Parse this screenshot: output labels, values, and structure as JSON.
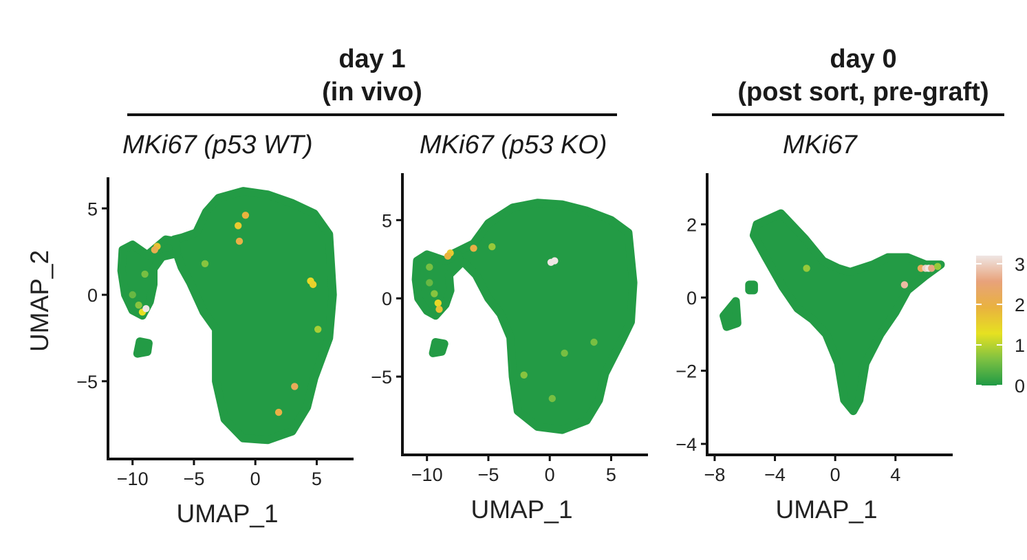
{
  "groups": {
    "day1": {
      "line1": "day 1",
      "line2": "(in vivo)"
    },
    "day0": {
      "line1": "day 0",
      "line2": "(post sort, pre-graft)"
    }
  },
  "colorbar": {
    "ticks": [
      "3",
      "2",
      "1",
      "0"
    ],
    "tick_values": [
      3,
      2,
      1,
      0
    ],
    "range": [
      0,
      3.2
    ],
    "colors": [
      "#1f9a45",
      "#7dc142",
      "#e6e121",
      "#e9b23f",
      "#e8a27a",
      "#efe6e4"
    ]
  },
  "point_color_base": "#239b45",
  "chart_data": [
    {
      "type": "scatter",
      "title": "MKi67 (p53 WT)",
      "xlabel": "UMAP_1",
      "ylabel": "UMAP_2",
      "xlim": [
        -12,
        8
      ],
      "ylim": [
        -9.5,
        6.8
      ],
      "xticks": [
        -10,
        -5,
        0,
        5
      ],
      "xtick_labels": [
        "−10",
        "−5",
        "0",
        "5"
      ],
      "yticks": [
        5,
        0,
        -5
      ],
      "ytick_labels": [
        "5",
        "0",
        "−5"
      ],
      "clusters": [
        {
          "points": [
            [
              -4.8,
              3.6
            ],
            [
              -4,
              4.8
            ],
            [
              -3,
              5.6
            ],
            [
              -1,
              6
            ],
            [
              1,
              5.8
            ],
            [
              3,
              5.3
            ],
            [
              4.8,
              4.7
            ],
            [
              6,
              3.5
            ],
            [
              6.3,
              0
            ],
            [
              6,
              -2.5
            ],
            [
              4.8,
              -4.8
            ],
            [
              4.2,
              -6.5
            ],
            [
              3,
              -7.9
            ],
            [
              1,
              -8.4
            ],
            [
              -1,
              -8.3
            ],
            [
              -2.5,
              -7.2
            ],
            [
              -3.2,
              -5
            ],
            [
              -3.2,
              -2
            ],
            [
              -4.2,
              -1
            ],
            [
              -5.3,
              0.7
            ],
            [
              -6,
              1.6
            ],
            [
              -6.4,
              2.4
            ],
            [
              -6.6,
              3.2
            ],
            [
              -6,
              3.3
            ]
          ]
        },
        {
          "points": [
            [
              -10.8,
              2.6
            ],
            [
              -10,
              2.9
            ],
            [
              -8.8,
              2.3
            ],
            [
              -7.3,
              3.2
            ],
            [
              -6.5,
              3.1
            ],
            [
              -6.4,
              2.4
            ],
            [
              -7.6,
              2.2
            ],
            [
              -8.3,
              1.5
            ],
            [
              -8.3,
              0.6
            ],
            [
              -8.6,
              -0.4
            ],
            [
              -9.2,
              -1.2
            ],
            [
              -10,
              -0.9
            ],
            [
              -10.6,
              0
            ],
            [
              -10.9,
              1.4
            ]
          ]
        },
        {
          "points": [
            [
              -9.4,
              -2.7
            ],
            [
              -8.7,
              -2.8
            ],
            [
              -8.8,
              -3.3
            ],
            [
              -9.6,
              -3.4
            ]
          ]
        }
      ],
      "highlights": [
        {
          "x": -1.4,
          "y": 4.0,
          "v": 1.6
        },
        {
          "x": -0.8,
          "y": 4.6,
          "v": 1.9
        },
        {
          "x": -1.3,
          "y": 3.1,
          "v": 2.0
        },
        {
          "x": -8.0,
          "y": 2.8,
          "v": 1.7
        },
        {
          "x": -8.2,
          "y": 2.6,
          "v": 2.1
        },
        {
          "x": -4.1,
          "y": 1.8,
          "v": 0.7
        },
        {
          "x": -9.0,
          "y": 1.2,
          "v": 0.6
        },
        {
          "x": -10.0,
          "y": 0.0,
          "v": 0.5
        },
        {
          "x": -9.5,
          "y": -0.6,
          "v": 0.7
        },
        {
          "x": -9.2,
          "y": -1.0,
          "v": 1.3
        },
        {
          "x": -8.9,
          "y": -0.8,
          "v": 3.3
        },
        {
          "x": 4.5,
          "y": 0.8,
          "v": 1.4
        },
        {
          "x": 4.7,
          "y": 0.6,
          "v": 1.5
        },
        {
          "x": 5.1,
          "y": -2.0,
          "v": 0.9
        },
        {
          "x": 3.2,
          "y": -5.3,
          "v": 2.2
        },
        {
          "x": 1.9,
          "y": -6.8,
          "v": 2.0
        }
      ]
    },
    {
      "type": "scatter",
      "title": "MKi67 (p53 KO)",
      "xlabel": "UMAP_1",
      "ylabel": "",
      "xlim": [
        -12,
        8
      ],
      "ylim": [
        -10,
        8
      ],
      "xticks": [
        -10,
        -5,
        0,
        5
      ],
      "xtick_labels": [
        "−10",
        "−5",
        "0",
        "5"
      ],
      "yticks": [
        5,
        0,
        -5
      ],
      "ytick_labels": [
        "5",
        "0",
        "−5"
      ],
      "clusters": [
        {
          "points": [
            [
              -6.2,
              3.5
            ],
            [
              -5,
              4.8
            ],
            [
              -3,
              5.8
            ],
            [
              -1,
              6.1
            ],
            [
              1,
              6
            ],
            [
              3,
              5.6
            ],
            [
              5,
              5
            ],
            [
              6.4,
              4.2
            ],
            [
              6.8,
              1
            ],
            [
              6.6,
              -1.5
            ],
            [
              5.8,
              -2.8
            ],
            [
              4.5,
              -4.8
            ],
            [
              4,
              -6.5
            ],
            [
              3,
              -7.8
            ],
            [
              1,
              -8.4
            ],
            [
              -1,
              -8.2
            ],
            [
              -2.6,
              -7.2
            ],
            [
              -3,
              -5
            ],
            [
              -3.2,
              -2.5
            ],
            [
              -4,
              -1
            ],
            [
              -5,
              0
            ],
            [
              -6,
              1.5
            ],
            [
              -7,
              2.3
            ],
            [
              -8,
              2.8
            ]
          ]
        },
        {
          "points": [
            [
              -10.8,
              2.4
            ],
            [
              -10,
              2.8
            ],
            [
              -8.5,
              2.4
            ],
            [
              -7.5,
              2.8
            ],
            [
              -7.3,
              2.2
            ],
            [
              -8.2,
              1.5
            ],
            [
              -8.1,
              0.5
            ],
            [
              -8.5,
              -0.4
            ],
            [
              -9.3,
              -1.1
            ],
            [
              -10,
              -0.8
            ],
            [
              -10.7,
              0
            ],
            [
              -10.9,
              1.2
            ]
          ]
        },
        {
          "points": [
            [
              -9.3,
              -2.8
            ],
            [
              -8.6,
              -2.9
            ],
            [
              -8.8,
              -3.4
            ],
            [
              -9.5,
              -3.5
            ]
          ]
        }
      ],
      "highlights": [
        {
          "x": -8.1,
          "y": 2.9,
          "v": 1.6
        },
        {
          "x": -8.3,
          "y": 2.7,
          "v": 1.9
        },
        {
          "x": -6.2,
          "y": 3.2,
          "v": 2.0
        },
        {
          "x": -4.7,
          "y": 3.3,
          "v": 0.8
        },
        {
          "x": -9.8,
          "y": 2.0,
          "v": 0.6
        },
        {
          "x": -9.8,
          "y": 1.0,
          "v": 0.5
        },
        {
          "x": -9.4,
          "y": 0.3,
          "v": 0.7
        },
        {
          "x": -9.1,
          "y": -0.3,
          "v": 1.4
        },
        {
          "x": -9.0,
          "y": -0.7,
          "v": 1.7
        },
        {
          "x": 0.1,
          "y": 2.3,
          "v": 3.2
        },
        {
          "x": 0.4,
          "y": 2.4,
          "v": 3.3
        },
        {
          "x": 3.6,
          "y": -2.8,
          "v": 0.6
        },
        {
          "x": 1.2,
          "y": -3.5,
          "v": 0.6
        },
        {
          "x": -2.1,
          "y": -4.9,
          "v": 0.7
        },
        {
          "x": 0.2,
          "y": -6.4,
          "v": 0.6
        }
      ]
    },
    {
      "type": "scatter",
      "title": "MKi67",
      "xlabel": "UMAP_1",
      "ylabel": "",
      "xlim": [
        -8.5,
        7.8
      ],
      "ylim": [
        -4.3,
        3.4
      ],
      "xticks": [
        -8,
        -4,
        0,
        4
      ],
      "xtick_labels": [
        "−8",
        "−4",
        "0",
        "4"
      ],
      "yticks": [
        2,
        0,
        -2,
        -4
      ],
      "ytick_labels": [
        "2",
        "0",
        "−2",
        "−4"
      ],
      "clusters": [
        {
          "points": [
            [
              -5.2,
              2
            ],
            [
              -3.6,
              2.3
            ],
            [
              -2,
              1.6
            ],
            [
              -0.8,
              1
            ],
            [
              0.2,
              0.8
            ],
            [
              1,
              0.7
            ],
            [
              2.5,
              0.9
            ],
            [
              3.5,
              1.1
            ],
            [
              4.8,
              1.1
            ],
            [
              6,
              0.9
            ],
            [
              7,
              0.9
            ],
            [
              6,
              0.6
            ],
            [
              4.8,
              0.2
            ],
            [
              4,
              -0.4
            ],
            [
              3,
              -1
            ],
            [
              2,
              -1.8
            ],
            [
              1.6,
              -2.8
            ],
            [
              1.2,
              -3.1
            ],
            [
              0.6,
              -2.8
            ],
            [
              0.2,
              -1.8
            ],
            [
              -0.6,
              -1
            ],
            [
              -1.5,
              -0.6
            ],
            [
              -2.5,
              -0.3
            ],
            [
              -3.5,
              0.3
            ],
            [
              -4.6,
              1.1
            ],
            [
              -5.4,
              1.7
            ]
          ]
        },
        {
          "points": [
            [
              -7.4,
              -0.5
            ],
            [
              -6.6,
              -0.1
            ],
            [
              -6.5,
              -0.7
            ],
            [
              -7.2,
              -0.8
            ]
          ]
        },
        {
          "points": [
            [
              -5.7,
              0.35
            ],
            [
              -5.4,
              0.35
            ],
            [
              -5.4,
              0.2
            ],
            [
              -5.7,
              0.2
            ]
          ]
        }
      ],
      "highlights": [
        {
          "x": -1.9,
          "y": 0.8,
          "v": 0.8
        },
        {
          "x": 5.7,
          "y": 0.8,
          "v": 2.2
        },
        {
          "x": 6.0,
          "y": 0.8,
          "v": 3.0
        },
        {
          "x": 6.2,
          "y": 0.8,
          "v": 3.2
        },
        {
          "x": 6.4,
          "y": 0.8,
          "v": 2.6
        },
        {
          "x": 6.8,
          "y": 0.85,
          "v": 0.8
        },
        {
          "x": 4.6,
          "y": 0.35,
          "v": 2.8
        }
      ]
    }
  ]
}
